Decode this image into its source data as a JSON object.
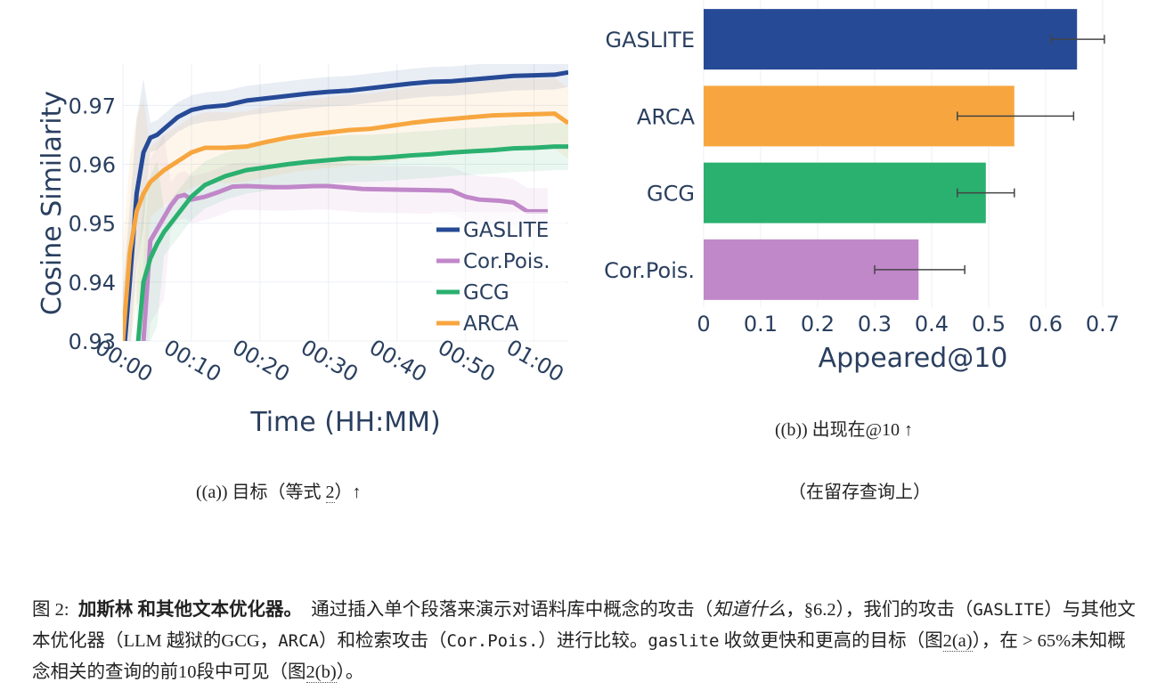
{
  "chart_data": [
    {
      "type": "line",
      "xlabel": "Time (HH:MM)",
      "ylabel": "Cosine Similarity",
      "xlim": [
        0,
        65
      ],
      "ylim": [
        0.93,
        0.977
      ],
      "xticks": [
        "00:00",
        "00:10",
        "00:20",
        "00:30",
        "00:40",
        "00:50",
        "01:00"
      ],
      "yticks": [
        "0.93",
        "0.94",
        "0.95",
        "0.96",
        "0.97"
      ],
      "legend_position": "bottom-right",
      "grid": true,
      "series": [
        {
          "name": "GASLITE",
          "color": "#264a96",
          "x": [
            0,
            1,
            2,
            3,
            4,
            5,
            6,
            8,
            10,
            12,
            15,
            18,
            21,
            24,
            27,
            30,
            33,
            36,
            39,
            42,
            45,
            48,
            51,
            54,
            57,
            60,
            63,
            65
          ],
          "y": [
            0.926,
            0.94,
            0.955,
            0.962,
            0.9645,
            0.965,
            0.966,
            0.968,
            0.9692,
            0.9697,
            0.97,
            0.9708,
            0.9712,
            0.9716,
            0.972,
            0.9723,
            0.9725,
            0.9729,
            0.9733,
            0.9737,
            0.974,
            0.9741,
            0.9744,
            0.9747,
            0.975,
            0.9751,
            0.9752,
            0.9756
          ]
        },
        {
          "name": "Cor.Pois.",
          "color": "#c087c9",
          "x": [
            3,
            4,
            5,
            6,
            7,
            8,
            9,
            10,
            12,
            14,
            16,
            18,
            20,
            22,
            24,
            26,
            28,
            30,
            35,
            40,
            45,
            48,
            50,
            52,
            55,
            57,
            59,
            62
          ],
          "y": [
            0.93,
            0.947,
            0.949,
            0.951,
            0.953,
            0.9545,
            0.9548,
            0.954,
            0.9545,
            0.9553,
            0.9562,
            0.9563,
            0.9562,
            0.9561,
            0.9561,
            0.9562,
            0.9563,
            0.9563,
            0.9558,
            0.9557,
            0.9556,
            0.9555,
            0.9545,
            0.954,
            0.9538,
            0.9535,
            0.952,
            0.952
          ]
        },
        {
          "name": "GCG",
          "color": "#2ab06f",
          "x": [
            2,
            3,
            4,
            5,
            6,
            8,
            10,
            12,
            15,
            18,
            21,
            24,
            27,
            30,
            33,
            36,
            39,
            42,
            45,
            48,
            51,
            54,
            57,
            60,
            63,
            65
          ],
          "y": [
            0.927,
            0.94,
            0.944,
            0.9465,
            0.9485,
            0.9515,
            0.9545,
            0.9565,
            0.958,
            0.959,
            0.9595,
            0.96,
            0.9604,
            0.9607,
            0.961,
            0.961,
            0.9612,
            0.9615,
            0.9617,
            0.962,
            0.9622,
            0.9624,
            0.9627,
            0.9628,
            0.963,
            0.963
          ]
        },
        {
          "name": "ARCA",
          "color": "#f7a63f",
          "x": [
            0,
            1,
            2,
            3,
            4,
            5,
            6,
            8,
            10,
            12,
            15,
            18,
            21,
            24,
            27,
            30,
            33,
            36,
            39,
            42,
            45,
            48,
            51,
            54,
            57,
            60,
            63,
            65
          ],
          "y": [
            0.93,
            0.945,
            0.952,
            0.955,
            0.957,
            0.958,
            0.959,
            0.9605,
            0.962,
            0.9628,
            0.9628,
            0.963,
            0.9638,
            0.9645,
            0.965,
            0.9654,
            0.9658,
            0.966,
            0.9665,
            0.967,
            0.9674,
            0.9677,
            0.968,
            0.9683,
            0.9684,
            0.9685,
            0.9686,
            0.967
          ]
        }
      ]
    },
    {
      "type": "bar",
      "orientation": "horizontal",
      "xlabel": "Appeared@10",
      "xlim": [
        0,
        0.7
      ],
      "xticks": [
        "0",
        "0.1",
        "0.2",
        "0.3",
        "0.4",
        "0.5",
        "0.6",
        "0.7"
      ],
      "categories": [
        "GASLITE",
        "ARCA",
        "GCG",
        "Cor.Pois."
      ],
      "values": [
        0.655,
        0.545,
        0.495,
        0.377
      ],
      "error_low": [
        0.61,
        0.445,
        0.445,
        0.3
      ],
      "error_high": [
        0.703,
        0.649,
        0.545,
        0.458
      ],
      "colors": [
        "#264a96",
        "#f7a63f",
        "#2ab06f",
        "#c087c9"
      ]
    }
  ],
  "subcaption_a": {
    "prefix": "((a)) 目标（等式 ",
    "eq": "2",
    "suffix": "）↑"
  },
  "subcaption_b": {
    "line1": "((b)) 出现在@10 ↑",
    "line2": "（在留存查询上）"
  },
  "caption": {
    "fig_label": "图 2:",
    "bold_title": "加斯林 和其他文本优化器。",
    "text1": "通过插入单个段落来演示对语料库中概念的攻击（",
    "italic": "知道什么",
    "text2": "，§6.2），我们的攻击（",
    "mono1": "GASLITE",
    "text3": "）与其他文本优化器（LLM 越狱的GCG，",
    "mono2": "ARCA",
    "text4": "）和检索攻击（",
    "mono3": "Cor.Pois.",
    "text5": "）进行比较。",
    "mono4": "gaslite",
    "text6": " 收敛更快和更高的目标（图",
    "ref1": "2(a)",
    "text7": "），在 > 65%未知概念相关的查询的前10段中可见（图",
    "ref2": "2(b)",
    "text8": "）。"
  }
}
